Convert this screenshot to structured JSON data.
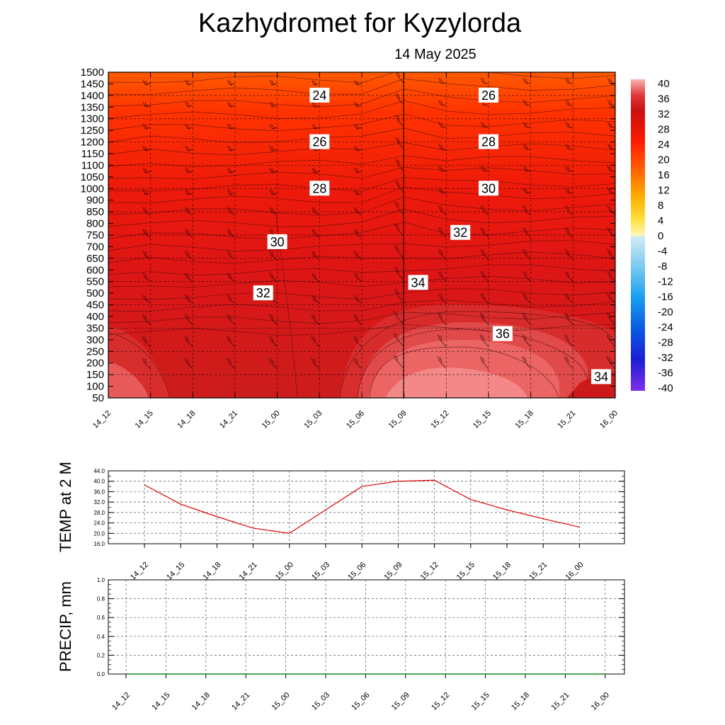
{
  "header": {
    "title": "Kazhydromet  for Kyzylorda",
    "date": "14 May 2025"
  },
  "time_labels": [
    "14_12",
    "14_15",
    "14_18",
    "14_21",
    "15_00",
    "15_03",
    "15_06",
    "15_09",
    "15_12",
    "15_15",
    "15_18",
    "15_21",
    "16_00"
  ],
  "chart_data": [
    {
      "type": "heatmap",
      "ylim": [
        50,
        1500
      ],
      "y_ticks": [
        "1500",
        "1450",
        "1400",
        "1350",
        "1300",
        "1250",
        "1200",
        "1150",
        "1100",
        "1050",
        "1000",
        "900",
        "850",
        "800",
        "750",
        "700",
        "650",
        "600",
        "550",
        "500",
        "450",
        "400",
        "350",
        "300",
        "250",
        "200",
        "150",
        "100",
        "50"
      ],
      "colorbar": {
        "labels": [
          "40",
          "36",
          "32",
          "28",
          "24",
          "20",
          "16",
          "12",
          "8",
          "4",
          "0",
          "-4",
          "-8",
          "-12",
          "-16",
          "-20",
          "-24",
          "-28",
          "-32",
          "-36",
          "-40"
        ],
        "colors": [
          "#f7b4b4",
          "#e23a3a",
          "#c81010",
          "#e00808",
          "#ff1a00",
          "#ff4d00",
          "#ff7a00",
          "#ffa000",
          "#ffc800",
          "#ffea40",
          "#fff6a8",
          "#c8e8f4",
          "#9cd6f0",
          "#6ec4ee",
          "#3aaef0",
          "#1090f0",
          "#0868e8",
          "#0a44e0",
          "#1a20d8",
          "#3a10d8",
          "#7a20e8"
        ]
      },
      "contour_labels": [
        {
          "text": "24",
          "time": "15_03",
          "level": 1400
        },
        {
          "text": "26",
          "time": "15_15",
          "level": 1400
        },
        {
          "text": "26",
          "time": "15_03",
          "level": 1200
        },
        {
          "text": "28",
          "time": "15_15",
          "level": 1200
        },
        {
          "text": "28",
          "time": "15_03",
          "level": 1000
        },
        {
          "text": "30",
          "time": "15_15",
          "level": 1000
        },
        {
          "text": "30",
          "time": "15_00",
          "level": 720
        },
        {
          "text": "32",
          "time": "15_13",
          "level": 760
        },
        {
          "text": "32",
          "time": "14_23",
          "level": 500
        },
        {
          "text": "34",
          "time": "15_10",
          "level": 545
        },
        {
          "text": "36",
          "time": "15_16",
          "level": 325
        },
        {
          "text": "34",
          "time": "15_23",
          "level": 140
        }
      ]
    },
    {
      "type": "line",
      "ylabel": "TEMP at 2 M",
      "ylim": [
        16.0,
        44.0
      ],
      "y_ticks": [
        "44.0",
        "40.0",
        "36.0",
        "32.0",
        "28.0",
        "24.0",
        "20.0",
        "16.0"
      ],
      "series": [
        {
          "color": "#e00000",
          "values": [
            38.6,
            31.2,
            26.4,
            22.0,
            20.0,
            29.0,
            38.0,
            40.0,
            40.4,
            33.0,
            29.0,
            25.6,
            22.4
          ]
        }
      ]
    },
    {
      "type": "line",
      "ylabel": "PRECIP, mm",
      "ylim": [
        0.0,
        1.0
      ],
      "y_ticks": [
        "1.0",
        "0.8",
        "0.6",
        "0.4",
        "0.2",
        "0.0"
      ],
      "series": [
        {
          "color": "#1a8a1a",
          "values": [
            0,
            0,
            0,
            0,
            0,
            0,
            0,
            0,
            0,
            0,
            0,
            0,
            0
          ]
        }
      ]
    }
  ]
}
